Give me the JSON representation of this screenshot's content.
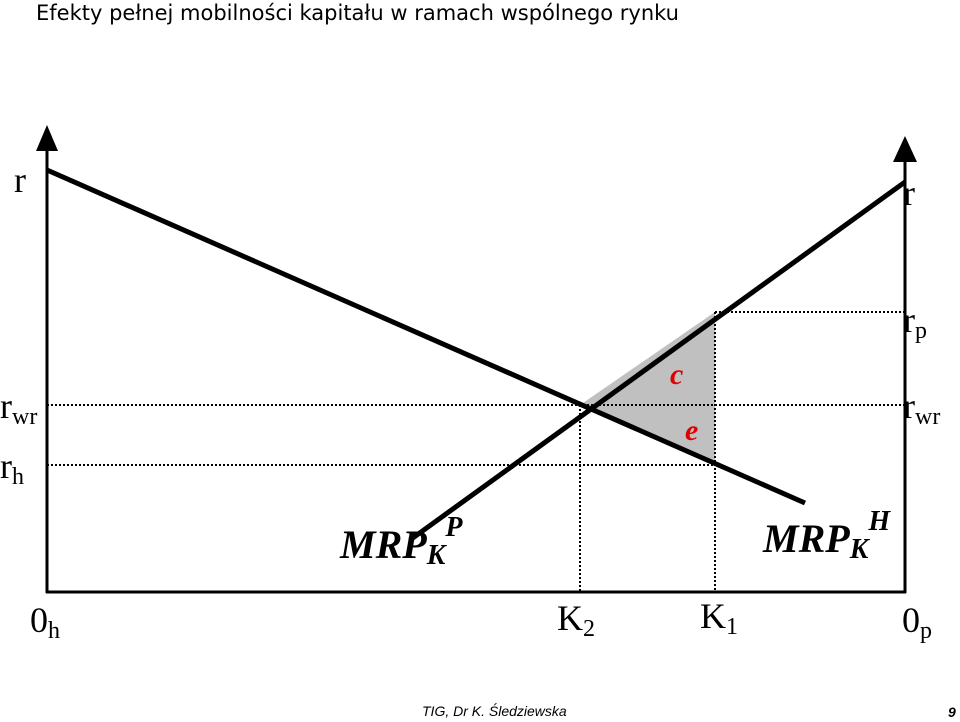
{
  "header": {
    "title": "Efekty pełnej mobilności kapitału w ramach wspólnego rynku"
  },
  "axes": {
    "left": "r",
    "right": "r"
  },
  "labels": {
    "r_wr_left": {
      "base": "r",
      "sub": "wr"
    },
    "r_h": {
      "base": "r",
      "sub": "h"
    },
    "r_p": {
      "base": "r",
      "sub": "p"
    },
    "r_wr_right": {
      "base": "r",
      "sub": "wr"
    },
    "origin_h": {
      "base": "0",
      "sub": "h"
    },
    "k2": {
      "base": "K",
      "sub": "2"
    },
    "k1": {
      "base": "K",
      "sub": "1"
    },
    "origin_p": {
      "base": "0",
      "sub": "p"
    }
  },
  "areas": {
    "c": "c",
    "e": "e"
  },
  "curves": {
    "mrp_p": {
      "base": "MRP",
      "sub": "K",
      "sup": "P"
    },
    "mrp_h": {
      "base": "MRP",
      "sub": "K",
      "sup": "H"
    }
  },
  "footer": {
    "author": "TIG, Dr K. Śledziewska",
    "page": "9"
  }
}
